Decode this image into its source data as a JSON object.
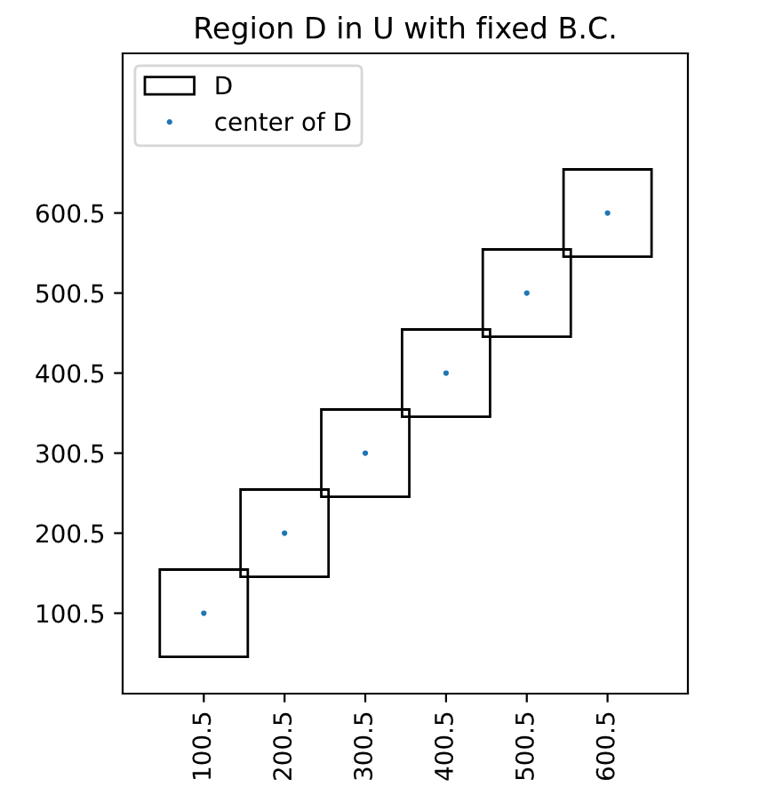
{
  "chart_data": {
    "type": "bar",
    "title": "Region D in U with fixed B.C.",
    "x": [
      100.5,
      200.5,
      300.5,
      400.5,
      500.5,
      600.5
    ],
    "series": [
      {
        "name": "D",
        "color": "#000000",
        "base": [
          46,
          146,
          246,
          346,
          446,
          546
        ],
        "values": [
          109,
          109,
          109,
          109,
          109,
          109
        ]
      },
      {
        "name": "center of D",
        "type": "scatter",
        "color": "#1f77b4",
        "values": [
          100.5,
          200.5,
          300.5,
          400.5,
          500.5,
          600.5
        ]
      }
    ],
    "xlim": [
      0,
      700
    ],
    "ylim": [
      0,
      800
    ],
    "xticks": [
      100.5,
      200.5,
      300.5,
      400.5,
      500.5,
      600.5
    ],
    "yticks": [
      100.5,
      200.5,
      300.5,
      400.5,
      500.5,
      600.5
    ],
    "legend": "top left",
    "grid": false
  }
}
